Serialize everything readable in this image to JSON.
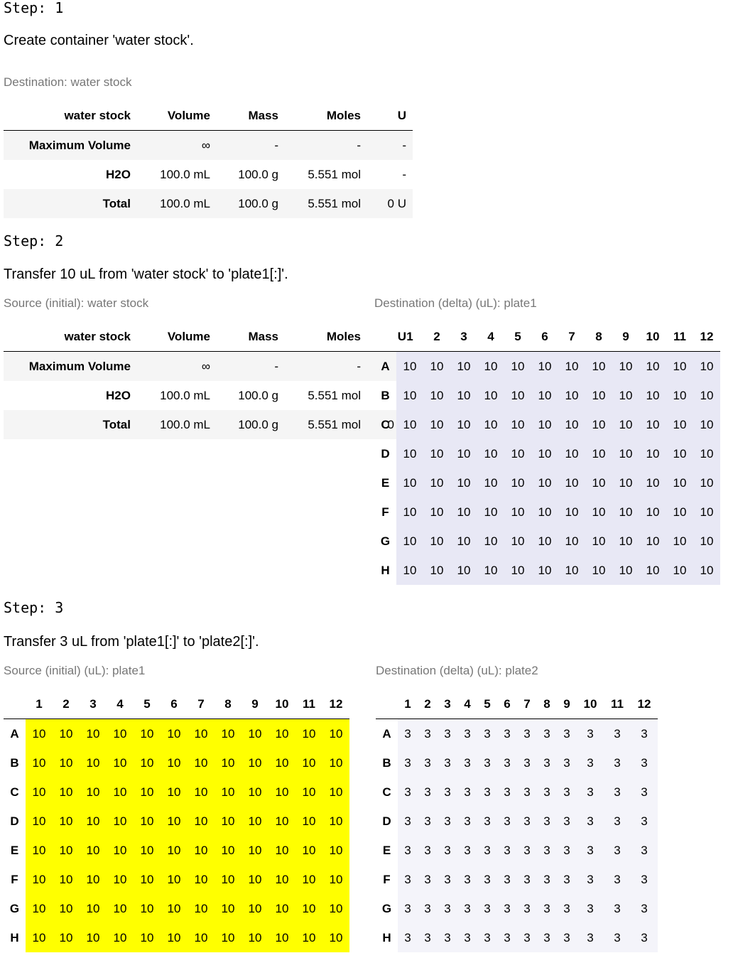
{
  "step1": {
    "label": "Step: 1",
    "description": "Create container 'water stock'.",
    "caption": "Destination: water stock",
    "table": {
      "headers": [
        "water stock",
        "Volume",
        "Mass",
        "Moles",
        "U"
      ],
      "rows": [
        [
          "Maximum Volume",
          "∞",
          "-",
          "-",
          "-"
        ],
        [
          "H2O",
          "100.0 mL",
          "100.0 g",
          "5.551 mol",
          "-"
        ],
        [
          "Total",
          "100.0 mL",
          "100.0 g",
          "5.551 mol",
          "0 U"
        ]
      ]
    }
  },
  "step2": {
    "label": "Step: 2",
    "description": "Transfer 10 uL from 'water stock' to 'plate1[:]'.",
    "source_caption": "Source (initial): water stock",
    "source_table": {
      "headers": [
        "water stock",
        "Volume",
        "Mass",
        "Moles",
        "U"
      ],
      "rows": [
        [
          "Maximum Volume",
          "∞",
          "-",
          "-",
          "-"
        ],
        [
          "H2O",
          "100.0 mL",
          "100.0 g",
          "5.551 mol",
          "-"
        ],
        [
          "Total",
          "100.0 mL",
          "100.0 g",
          "5.551 mol",
          "0 U"
        ]
      ]
    },
    "dest_caption": "Destination (delta) (uL): plate1",
    "dest_plate": {
      "columns": [
        "1",
        "2",
        "3",
        "4",
        "5",
        "6",
        "7",
        "8",
        "9",
        "10",
        "11",
        "12"
      ],
      "rows": [
        "A",
        "B",
        "C",
        "D",
        "E",
        "F",
        "G",
        "H"
      ],
      "value": "10",
      "cell_color": "#e8e8f5"
    }
  },
  "step3": {
    "label": "Step: 3",
    "description": "Transfer 3 uL from 'plate1[:]' to 'plate2[:]'.",
    "source_caption": "Source (initial) (uL): plate1",
    "source_plate": {
      "columns": [
        "1",
        "2",
        "3",
        "4",
        "5",
        "6",
        "7",
        "8",
        "9",
        "10",
        "11",
        "12"
      ],
      "rows": [
        "A",
        "B",
        "C",
        "D",
        "E",
        "F",
        "G",
        "H"
      ],
      "value": "10",
      "cell_color": "#ffff00"
    },
    "dest_caption": "Destination (delta) (uL): plate2",
    "dest_plate": {
      "columns": [
        "1",
        "2",
        "3",
        "4",
        "5",
        "6",
        "7",
        "8",
        "9",
        "10",
        "11",
        "12"
      ],
      "rows": [
        "A",
        "B",
        "C",
        "D",
        "E",
        "F",
        "G",
        "H"
      ],
      "value": "3",
      "cell_color": "#f4f4fa"
    }
  }
}
